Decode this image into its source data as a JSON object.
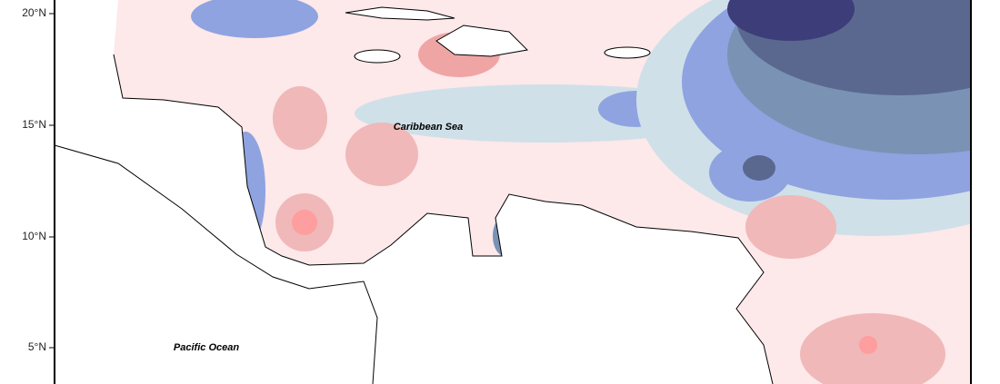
{
  "axis": {
    "lat_labels": [
      "20°N",
      "15°N",
      "10°N",
      "5°N"
    ]
  },
  "labels": {
    "sea": "Caribbean Sea",
    "ocean": "Pacific Ocean"
  }
}
